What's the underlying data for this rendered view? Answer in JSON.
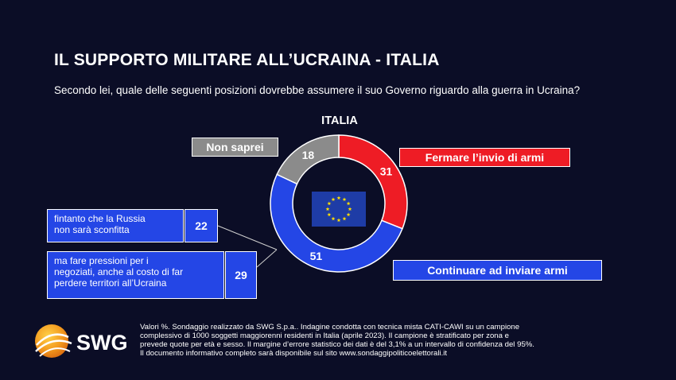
{
  "header": {
    "title": "IL SUPPORTO MILITARE ALL’UCRAINA - ITALIA",
    "subtitle": "Secondo lei, quale delle seguenti posizioni dovrebbe assumere il suo Governo riguardo alla guerra in Ucraina?"
  },
  "chart_data": {
    "type": "pie",
    "title": "ITALIA",
    "unit": "%",
    "categories": [
      "Fermare l’invio di armi",
      "Continuare ad inviare armi",
      "Non saprei"
    ],
    "values": [
      31,
      51,
      18
    ],
    "colors": [
      "#ee1c25",
      "#2446e6",
      "#8b8b8b"
    ],
    "breakdown": {
      "parent": "Continuare ad inviare armi",
      "items": [
        {
          "label": "fintanto che la Russia non sarà sconfitta",
          "value": 22
        },
        {
          "label": "ma fare pressioni per i negoziati, anche al costo di far perdere territori all’Ucraina",
          "value": 29
        }
      ]
    }
  },
  "labels": {
    "non_saprei": "Non saprei",
    "fermare": "Fermare l’invio di armi",
    "continuare": "Continuare ad inviare armi",
    "sub1_line1": "fintanto che la Russia",
    "sub1_line2": "non sarà sconfitta",
    "sub2_line1": "ma fare pressioni per i",
    "sub2_line2": "negoziati, anche al costo di far",
    "sub2_line3": "perdere territori all’Ucraina"
  },
  "center_icon": "eu-flag-icon",
  "logo": {
    "text": "SWG",
    "icon": "swg-globe-icon"
  },
  "note": {
    "line1": "Valori %. Sondaggio realizzato da SWG S.p.a.. Indagine condotta con tecnica mista CATI-CAWI su un campione",
    "line2": "complessivo di 1000 soggetti maggiorenni residenti in Italia (aprile 2023). Il campione è stratificato per zona e",
    "line3": "prevede quote per età e sesso. Il margine d’errore statistico dei dati è del 3,1% a un intervallo di confidenza del 95%.",
    "line4": "Il documento informativo completo sarà disponibile sul sito www.sondaggipoliticoelettorali.it"
  }
}
